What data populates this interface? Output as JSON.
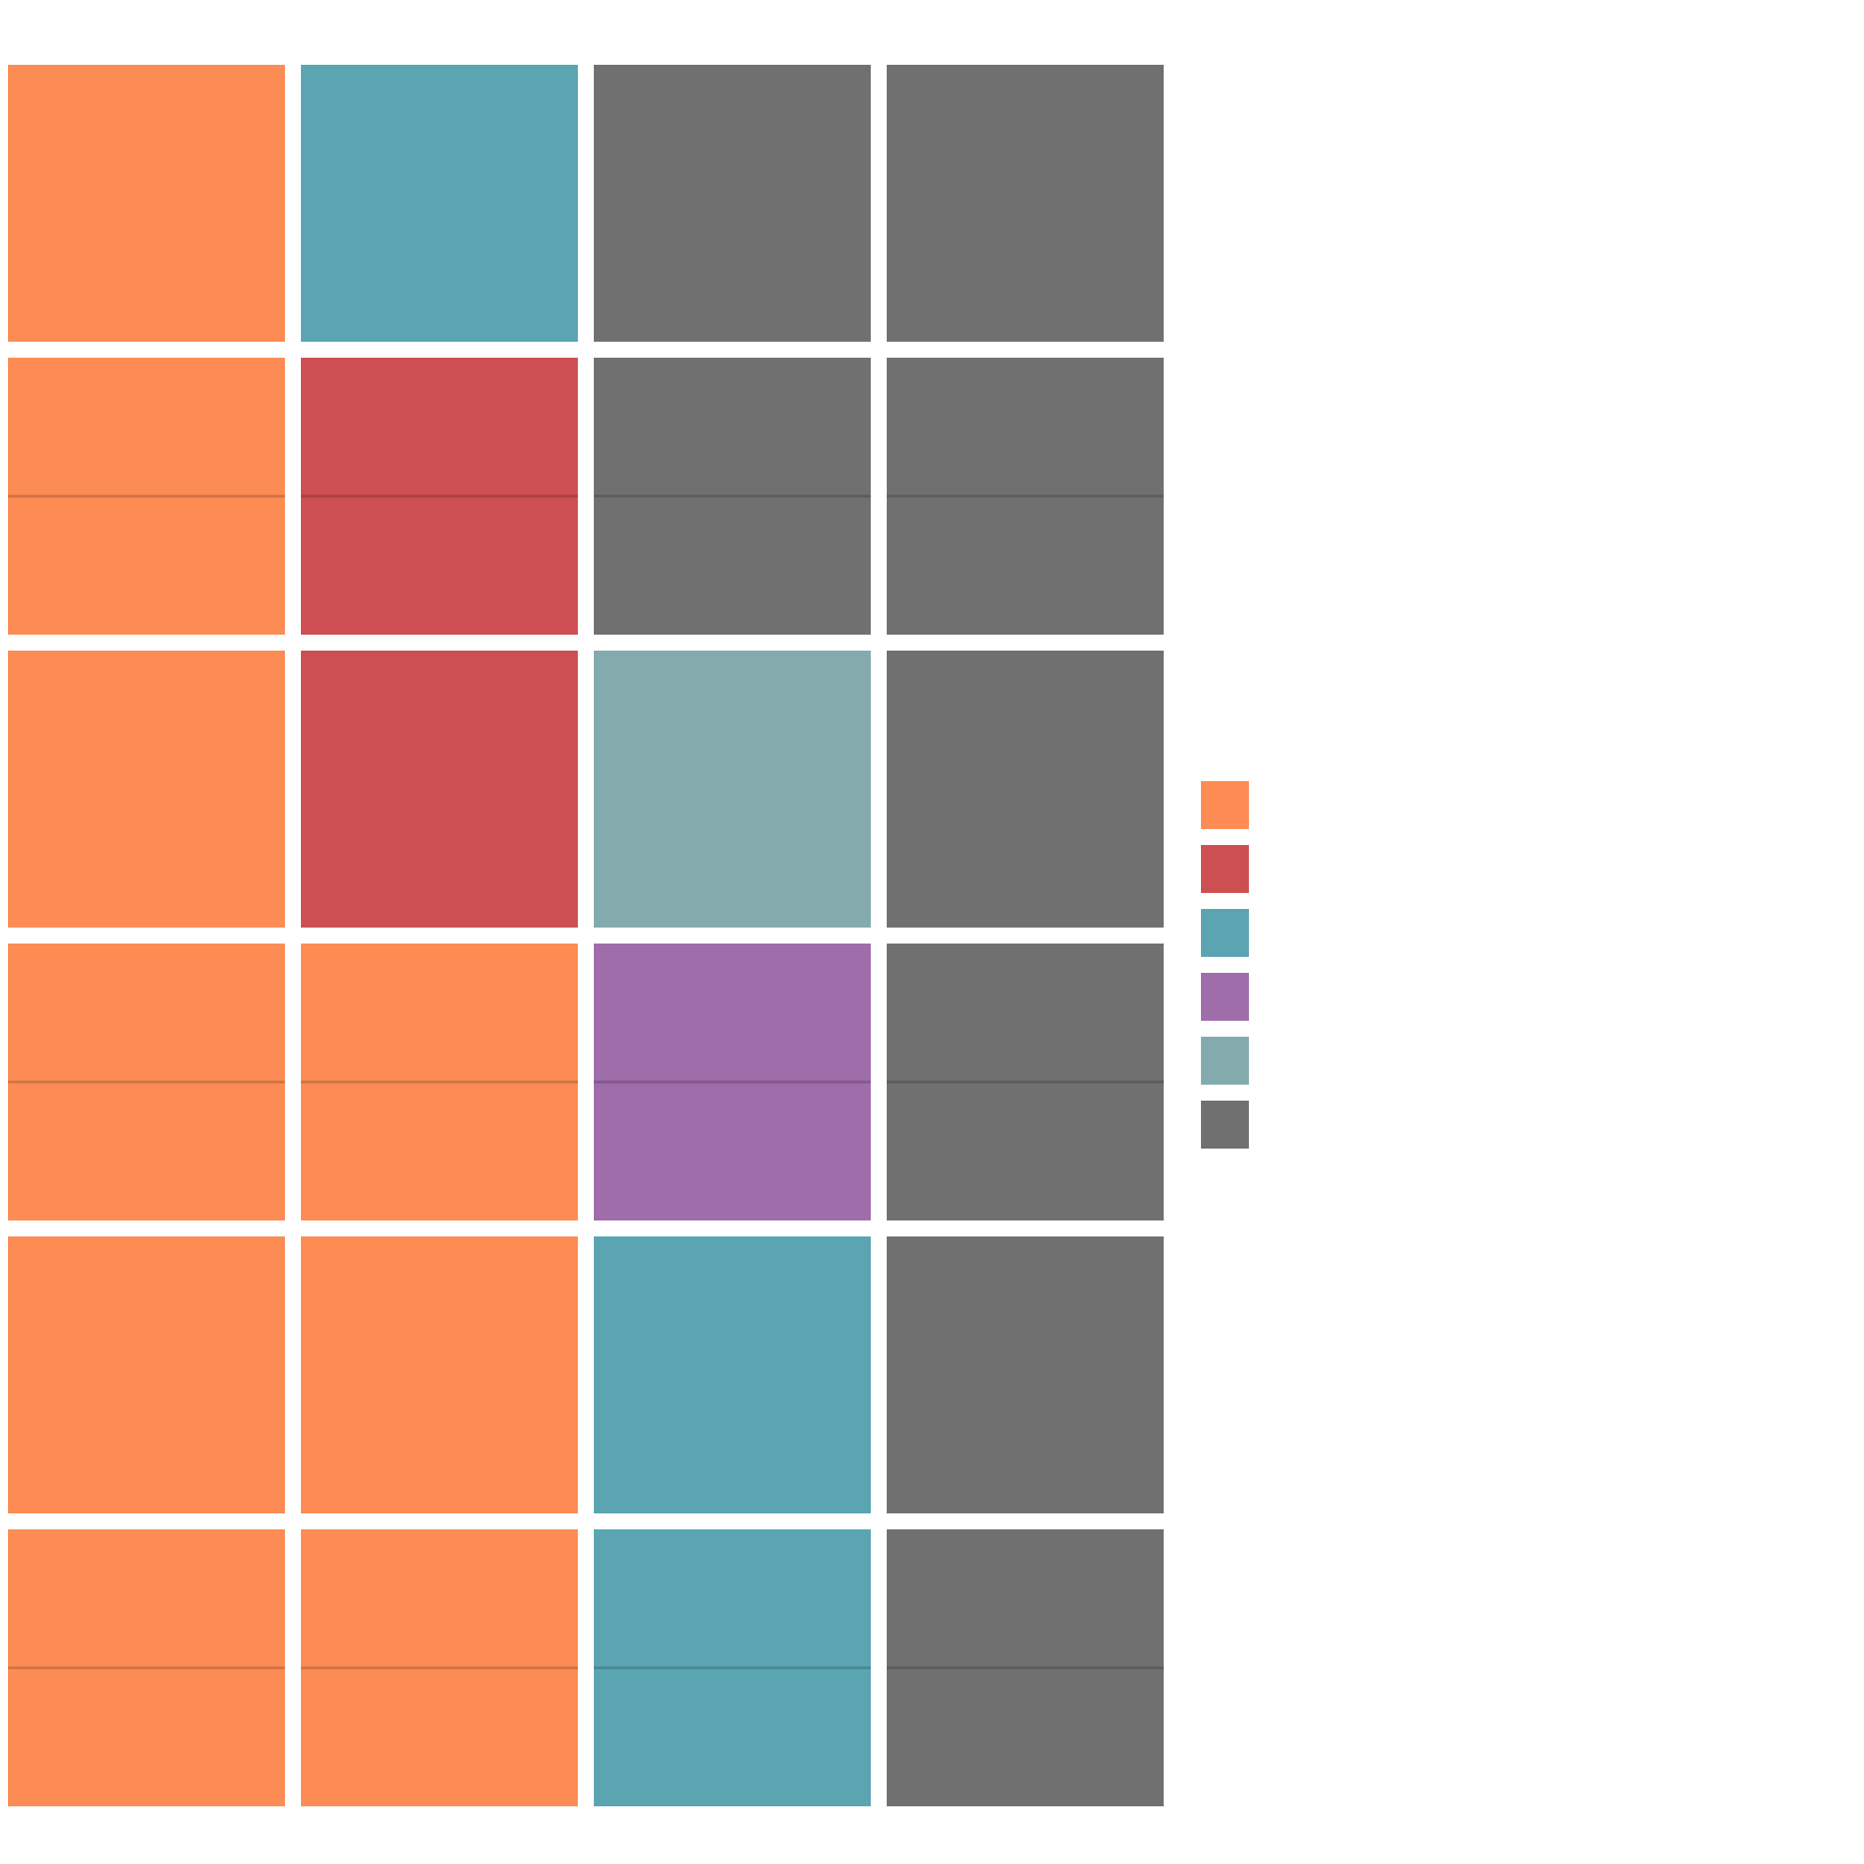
{
  "chart_data": {
    "type": "waffle",
    "grid": {
      "rows": 6,
      "columns": 4
    },
    "cells": [
      [
        "#FC8C54",
        "#5AA5B1",
        "#707070",
        "#707070"
      ],
      [
        "#FC8C54",
        "#CD4F52",
        "#707070",
        "#707070"
      ],
      [
        "#FC8C54",
        "#CD4F52",
        "#83AAAC",
        "#707070"
      ],
      [
        "#FC8C54",
        "#FC8C54",
        "#9E6DAA",
        "#707070"
      ],
      [
        "#FC8C54",
        "#FC8C54",
        "#5AA5B1",
        "#707070"
      ],
      [
        "#FC8C54",
        "#FC8C54",
        "#5AA5B1",
        "#707070"
      ]
    ],
    "row_dividers": [
      1,
      3,
      5
    ],
    "legend": {
      "position": "right",
      "entries": [
        {
          "color": "#FC8C54"
        },
        {
          "color": "#CD4F52"
        },
        {
          "color": "#5AA5B1"
        },
        {
          "color": "#9E6DAA"
        },
        {
          "color": "#83AAAC"
        },
        {
          "color": "#707070"
        }
      ]
    },
    "grid_lines": false
  }
}
